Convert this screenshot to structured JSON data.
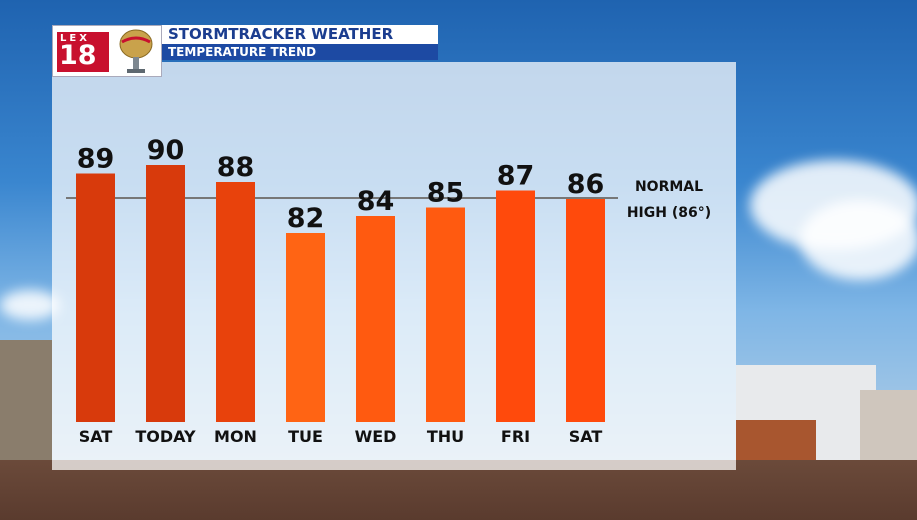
{
  "header": {
    "logo_channel": "LEX",
    "logo_number": "18",
    "title": "STORMTRACKER WEATHER",
    "subtitle": "TEMPERATURE TREND"
  },
  "chart_data": {
    "type": "bar",
    "title": "TEMPERATURE TREND",
    "categories": [
      "SAT",
      "TODAY",
      "MON",
      "TUE",
      "WED",
      "THU",
      "FRI",
      "SAT"
    ],
    "values": [
      89,
      90,
      88,
      82,
      84,
      85,
      87,
      86
    ],
    "reference_line": {
      "value": 86,
      "label_line1": "NORMAL",
      "label_line2": "HIGH (86°)"
    },
    "colors": [
      "#d83a0c",
      "#d83a0c",
      "#e8420c",
      "#ff6414",
      "#ff5a10",
      "#ff5a10",
      "#ff4a0c",
      "#ff4a0c"
    ],
    "grid": false,
    "legend": "none"
  }
}
